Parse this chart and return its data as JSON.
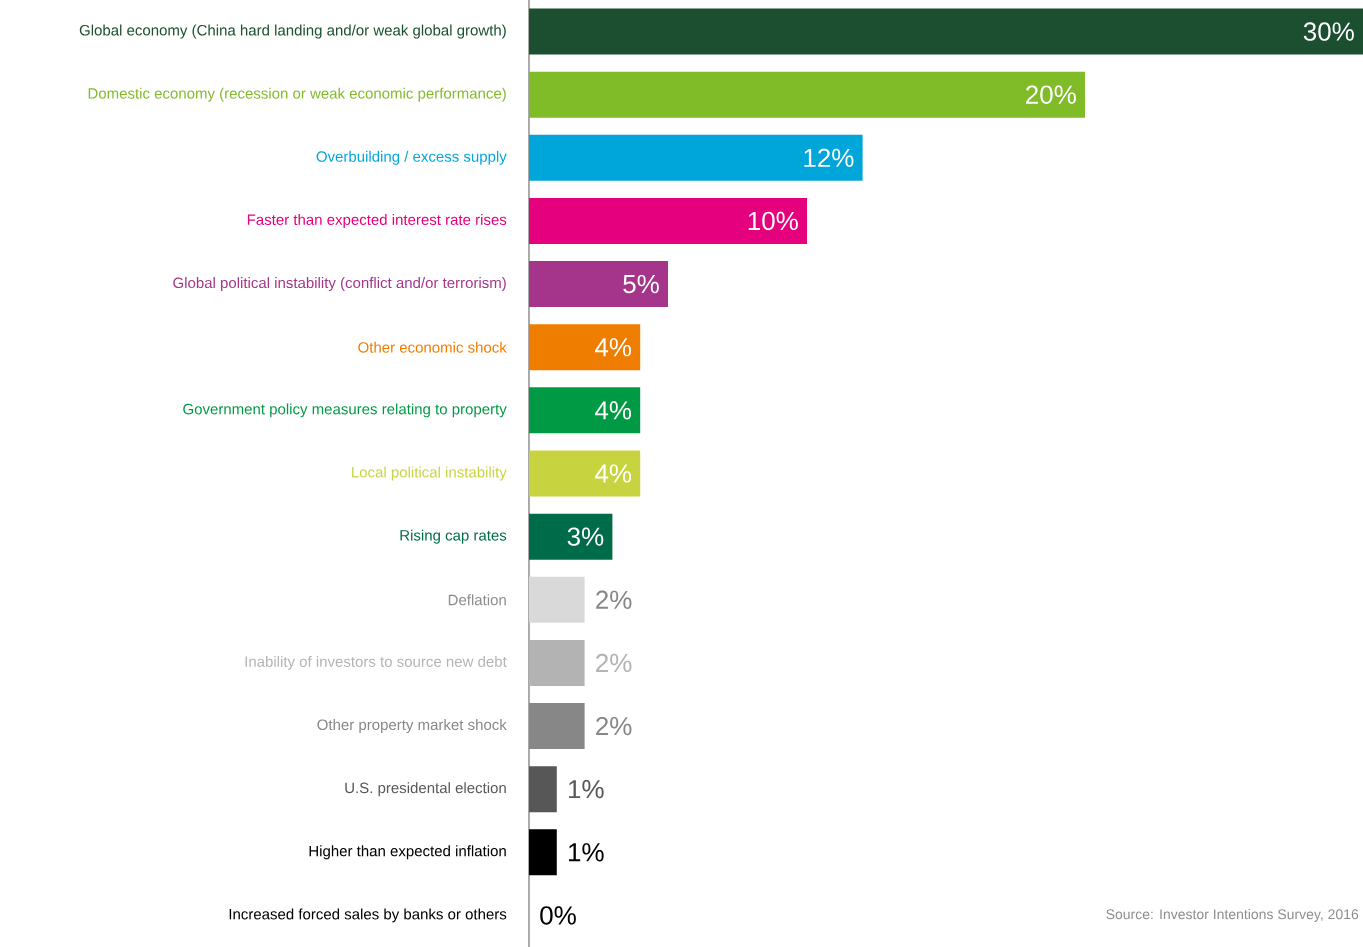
{
  "chart_data": {
    "type": "bar",
    "orientation": "horizontal",
    "categories": [
      "Global economy (China hard landing and/or weak global growth)",
      "Domestic economy (recession or weak economic performance)",
      "Overbuilding / excess supply",
      "Faster than expected interest rate rises",
      "Global political instability (conflict and/or terrorism)",
      "Other economic shock",
      "Government policy measures relating to property",
      "Local political instability",
      "Rising cap rates",
      "Deflation",
      "Inability of investors to source new debt",
      "Other property market shock",
      "U.S. presidental election",
      "Higher than expected inflation",
      "Increased forced sales by banks or others"
    ],
    "values": [
      30,
      20,
      12,
      10,
      5,
      4,
      4,
      4,
      3,
      2,
      2,
      2,
      1,
      1,
      0
    ],
    "value_labels": [
      "30%",
      "20%",
      "12%",
      "10%",
      "5%",
      "4%",
      "4%",
      "4%",
      "3%",
      "2%",
      "2%",
      "2%",
      "1%",
      "1%",
      "0%"
    ],
    "colors": [
      "#1b4f30",
      "#80bb28",
      "#00a6d9",
      "#e5007e",
      "#a5358a",
      "#ef7d00",
      "#009a44",
      "#c8d43f",
      "#006b48",
      "#d9d9d9",
      "#b3b3b3",
      "#878787",
      "#575757",
      "#000000",
      "#000000"
    ],
    "xlim": [
      0,
      30
    ],
    "annotations": [
      "Source: Investor Intentions Survey, 2016"
    ]
  }
}
